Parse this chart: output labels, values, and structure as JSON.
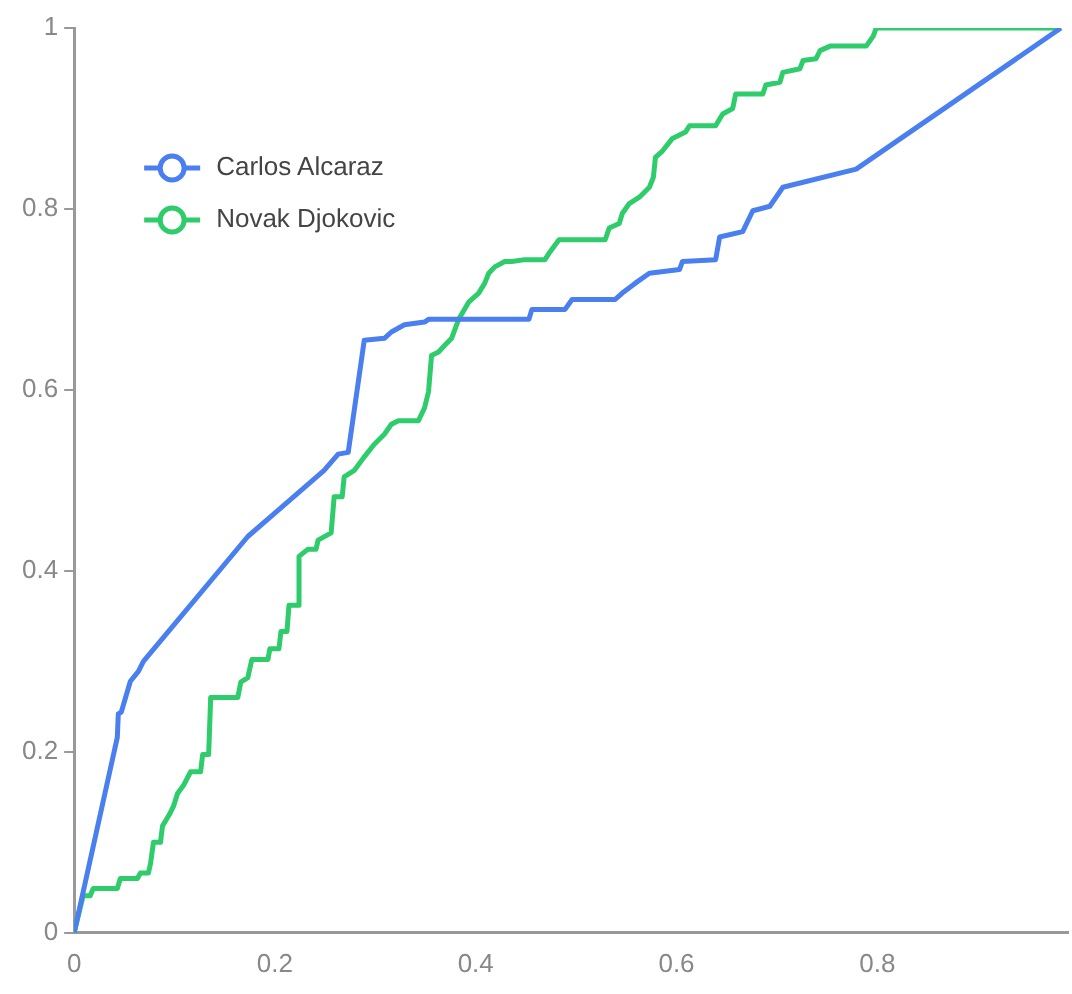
{
  "chart_data": {
    "type": "line",
    "xlim": [
      0,
      0.99
    ],
    "ylim": [
      0,
      1
    ],
    "xticks": [
      0,
      0.2,
      0.4,
      0.6,
      0.8
    ],
    "yticks": [
      0,
      0.2,
      0.4,
      0.6,
      0.8,
      1
    ],
    "grid": false,
    "legend": "top left",
    "marker": "none",
    "line_style": "solid",
    "series": [
      {
        "name": "Carlos Alcaraz",
        "color": "#4a7ff0",
        "x": [
          0,
          0.043,
          0.044,
          0.047,
          0.056,
          0.064,
          0.069,
          0.173,
          0.249,
          0.263,
          0.273,
          0.289,
          0.309,
          0.316,
          0.329,
          0.349,
          0.353,
          0.453,
          0.456,
          0.489,
          0.496,
          0.539,
          0.546,
          0.559,
          0.573,
          0.603,
          0.606,
          0.639,
          0.643,
          0.666,
          0.676,
          0.693,
          0.706,
          0.779,
          0.983
        ],
        "values": [
          0,
          0.216,
          0.242,
          0.244,
          0.278,
          0.289,
          0.3,
          0.438,
          0.511,
          0.529,
          0.531,
          0.655,
          0.657,
          0.664,
          0.672,
          0.675,
          0.678,
          0.678,
          0.689,
          0.689,
          0.7,
          0.7,
          0.707,
          0.718,
          0.729,
          0.733,
          0.742,
          0.744,
          0.769,
          0.775,
          0.798,
          0.803,
          0.824,
          0.844,
          1
        ]
      },
      {
        "name": "Novak Djokovic",
        "color": "#2ecc6b",
        "x": [
          0,
          0.009,
          0.016,
          0.019,
          0.043,
          0.046,
          0.063,
          0.066,
          0.074,
          0.076,
          0.079,
          0.086,
          0.088,
          0.095,
          0.099,
          0.103,
          0.109,
          0.116,
          0.126,
          0.128,
          0.134,
          0.136,
          0.163,
          0.166,
          0.173,
          0.177,
          0.193,
          0.195,
          0.204,
          0.206,
          0.212,
          0.214,
          0.223,
          0.224,
          0.233,
          0.241,
          0.243,
          0.256,
          0.259,
          0.267,
          0.269,
          0.279,
          0.289,
          0.299,
          0.309,
          0.316,
          0.323,
          0.343,
          0.349,
          0.353,
          0.356,
          0.363,
          0.369,
          0.376,
          0.383,
          0.393,
          0.403,
          0.409,
          0.413,
          0.419,
          0.429,
          0.436,
          0.449,
          0.469,
          0.473,
          0.483,
          0.529,
          0.533,
          0.543,
          0.546,
          0.553,
          0.563,
          0.573,
          0.577,
          0.579,
          0.586,
          0.596,
          0.609,
          0.613,
          0.639,
          0.646,
          0.656,
          0.659,
          0.686,
          0.689,
          0.703,
          0.706,
          0.723,
          0.726,
          0.739,
          0.743,
          0.753,
          0.789,
          0.796,
          0.799,
          0.983
        ],
        "values": [
          0,
          0.041,
          0.041,
          0.049,
          0.049,
          0.06,
          0.06,
          0.066,
          0.066,
          0.076,
          0.1,
          0.1,
          0.118,
          0.131,
          0.14,
          0.154,
          0.163,
          0.178,
          0.178,
          0.197,
          0.197,
          0.26,
          0.26,
          0.277,
          0.282,
          0.302,
          0.302,
          0.314,
          0.314,
          0.333,
          0.333,
          0.362,
          0.362,
          0.416,
          0.424,
          0.424,
          0.434,
          0.442,
          0.482,
          0.482,
          0.504,
          0.511,
          0.526,
          0.54,
          0.551,
          0.562,
          0.566,
          0.566,
          0.58,
          0.598,
          0.638,
          0.642,
          0.649,
          0.657,
          0.678,
          0.697,
          0.707,
          0.718,
          0.729,
          0.736,
          0.742,
          0.742,
          0.744,
          0.744,
          0.751,
          0.766,
          0.766,
          0.779,
          0.784,
          0.795,
          0.806,
          0.813,
          0.824,
          0.835,
          0.857,
          0.864,
          0.878,
          0.885,
          0.892,
          0.892,
          0.905,
          0.911,
          0.927,
          0.927,
          0.937,
          0.94,
          0.951,
          0.955,
          0.964,
          0.966,
          0.975,
          0.98,
          0.98,
          0.991,
          1,
          1
        ]
      }
    ]
  }
}
